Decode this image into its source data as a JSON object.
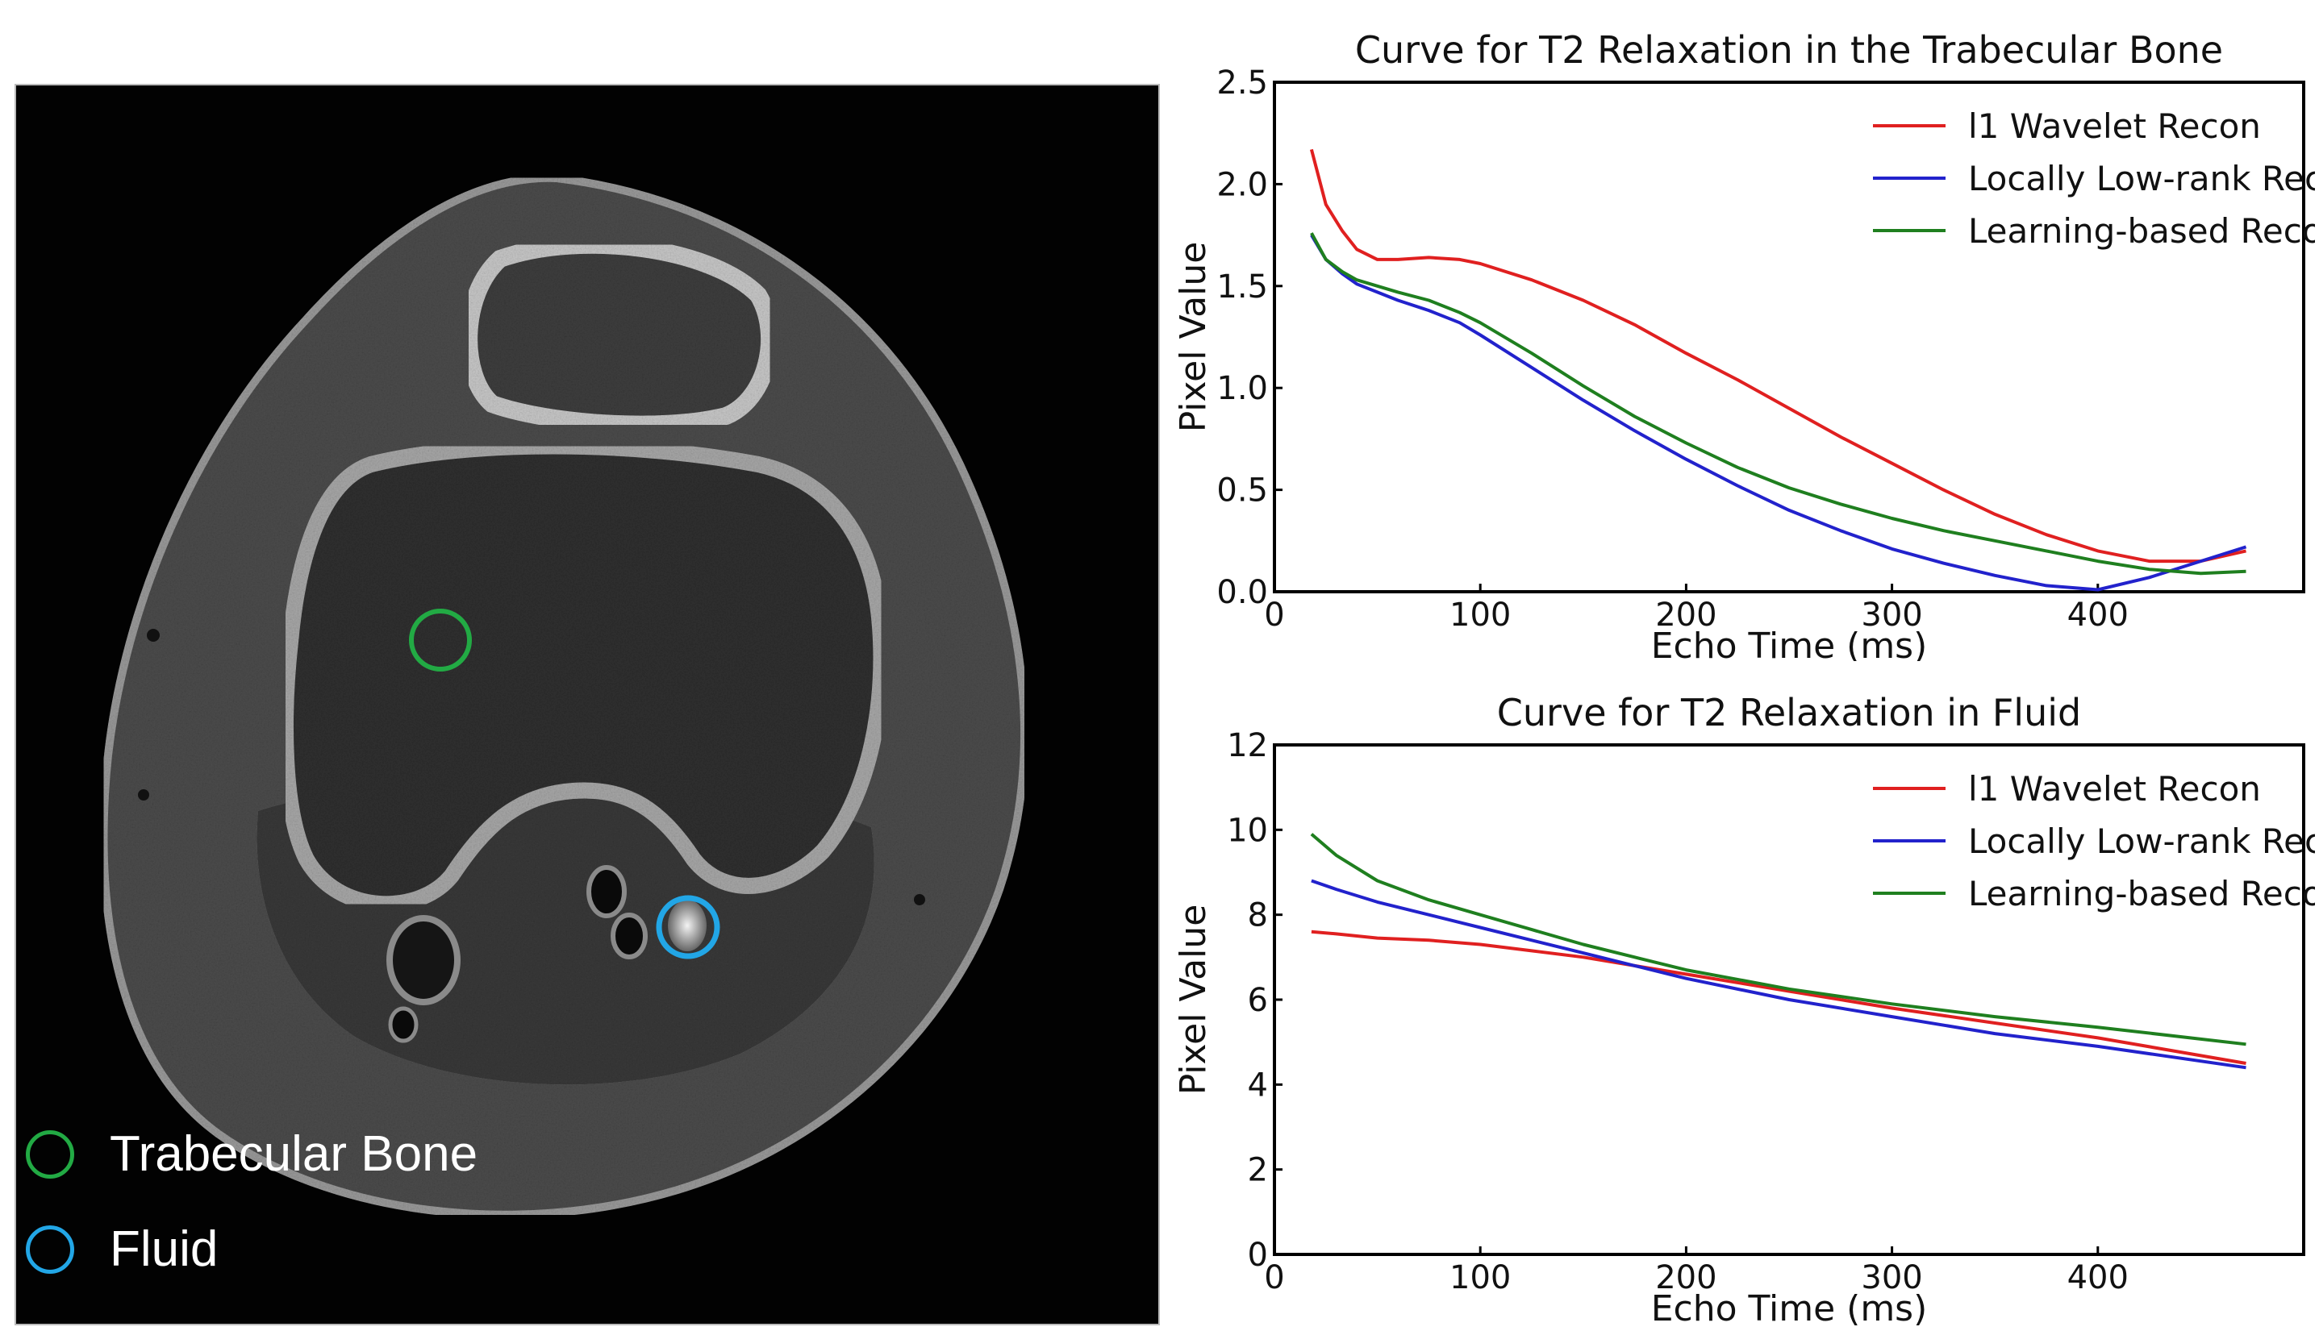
{
  "mri_panel": {
    "legend": [
      {
        "label": "Trabecular Bone",
        "color": "#22aa44"
      },
      {
        "label": "Fluid",
        "color": "#22a6e6"
      }
    ]
  },
  "chart_data": [
    {
      "type": "line",
      "title": "Curve for T2 Relaxation in the Trabecular Bone",
      "xlabel": "Echo Time (ms)",
      "ylabel": "Pixel Value",
      "xlim": [
        0,
        500
      ],
      "ylim": [
        0,
        2.5
      ],
      "xticks": [
        0,
        100,
        200,
        300,
        400
      ],
      "yticks": [
        0.0,
        0.5,
        1.0,
        1.5,
        2.0,
        2.5
      ],
      "ytick_labels": [
        "0.0",
        "0.5",
        "1.0",
        "1.5",
        "2.0",
        "2.5"
      ],
      "legend_position": "top-right",
      "x": [
        18,
        25,
        33,
        40,
        50,
        60,
        75,
        90,
        100,
        125,
        150,
        175,
        200,
        225,
        250,
        275,
        300,
        325,
        350,
        375,
        400,
        425,
        450,
        472
      ],
      "series": [
        {
          "name": "l1 Wavelet Recon",
          "color": "#e02020",
          "values": [
            2.17,
            1.9,
            1.77,
            1.68,
            1.63,
            1.63,
            1.64,
            1.63,
            1.61,
            1.53,
            1.43,
            1.31,
            1.17,
            1.04,
            0.9,
            0.76,
            0.63,
            0.5,
            0.38,
            0.28,
            0.2,
            0.15,
            0.15,
            0.2
          ]
        },
        {
          "name": "Locally Low-rank Recon",
          "color": "#2222cc",
          "values": [
            1.75,
            1.63,
            1.56,
            1.51,
            1.47,
            1.43,
            1.38,
            1.32,
            1.26,
            1.1,
            0.94,
            0.79,
            0.65,
            0.52,
            0.4,
            0.3,
            0.21,
            0.14,
            0.08,
            0.03,
            0.01,
            0.07,
            0.15,
            0.22
          ]
        },
        {
          "name": "Learning-based Recon",
          "color": "#1f7f1f",
          "values": [
            1.76,
            1.63,
            1.57,
            1.53,
            1.5,
            1.47,
            1.43,
            1.37,
            1.32,
            1.17,
            1.01,
            0.86,
            0.73,
            0.61,
            0.51,
            0.43,
            0.36,
            0.3,
            0.25,
            0.2,
            0.15,
            0.11,
            0.09,
            0.1
          ]
        }
      ]
    },
    {
      "type": "line",
      "title": "Curve for T2 Relaxation in Fluid",
      "xlabel": "Echo Time (ms)",
      "ylabel": "Pixel Value",
      "xlim": [
        0,
        500
      ],
      "ylim": [
        0,
        12
      ],
      "xticks": [
        0,
        100,
        200,
        300,
        400
      ],
      "yticks": [
        0,
        2,
        4,
        6,
        8,
        10,
        12
      ],
      "ytick_labels": [
        "0",
        "2",
        "4",
        "6",
        "8",
        "10",
        "12"
      ],
      "legend_position": "top-right",
      "x": [
        18,
        30,
        50,
        75,
        100,
        125,
        150,
        175,
        200,
        250,
        300,
        350,
        400,
        472
      ],
      "series": [
        {
          "name": "l1 Wavelet Recon",
          "color": "#e02020",
          "values": [
            7.6,
            7.55,
            7.45,
            7.4,
            7.3,
            7.15,
            7.0,
            6.8,
            6.6,
            6.2,
            5.8,
            5.45,
            5.1,
            4.5
          ]
        },
        {
          "name": "Locally Low-rank Recon",
          "color": "#2222cc",
          "values": [
            8.8,
            8.6,
            8.3,
            8.0,
            7.7,
            7.4,
            7.1,
            6.8,
            6.5,
            6.0,
            5.6,
            5.2,
            4.9,
            4.4
          ]
        },
        {
          "name": "Learning-based Recon",
          "color": "#1f7f1f",
          "values": [
            9.9,
            9.4,
            8.8,
            8.35,
            8.0,
            7.65,
            7.3,
            7.0,
            6.7,
            6.25,
            5.9,
            5.6,
            5.35,
            4.95
          ]
        }
      ]
    }
  ]
}
